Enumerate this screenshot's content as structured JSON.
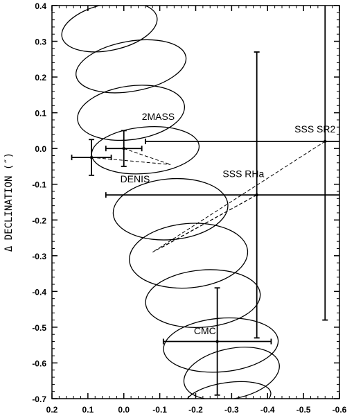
{
  "chart_data": {
    "type": "scatter",
    "title": "",
    "xlabel": "",
    "ylabel": "Δ DECLINATION (″)",
    "xlim": [
      0.2,
      -0.6
    ],
    "ylim": [
      -0.7,
      0.4
    ],
    "grid": false,
    "x_ticks": [
      0.2,
      0.1,
      0.0,
      -0.1,
      -0.2,
      -0.3,
      -0.4,
      -0.5,
      -0.6
    ],
    "x_tick_labels": [
      "0.2",
      "0.1",
      "0.0",
      "-0.1",
      "-0.2",
      "-0.3",
      "-0.4",
      "-0.5",
      "-0.6"
    ],
    "y_ticks": [
      0.4,
      0.3,
      0.2,
      0.1,
      0.0,
      -0.1,
      -0.2,
      -0.3,
      -0.4,
      -0.5,
      -0.6,
      -0.7
    ],
    "y_tick_labels": [
      "0.4",
      "0.3",
      "0.2",
      "0.1",
      "0.0",
      "-0.1",
      "-0.2",
      "-0.3",
      "-0.4",
      "-0.5",
      "-0.6",
      "-0.7"
    ],
    "points": [
      {
        "label": "2MASS",
        "x": 0.0,
        "y": 0.0,
        "xerr": 0.05,
        "yerr": 0.05
      },
      {
        "label": "DENIS",
        "x": 0.09,
        "y": -0.025,
        "xerr": 0.055,
        "yerr": 0.05
      },
      {
        "label": "SSS RHa",
        "x": -0.37,
        "y": -0.13,
        "xerr": 0.42,
        "yerr": 0.4
      },
      {
        "label": "SSS SR2",
        "x": -0.56,
        "y": 0.02,
        "xerr": 0.5,
        "yerr": 0.5
      },
      {
        "label": "CMC",
        "x": -0.26,
        "y": -0.54,
        "xerr": 0.15,
        "yerr": 0.15
      }
    ],
    "annotations": [
      {
        "text": "2MASS",
        "x": -0.05,
        "y": 0.08
      },
      {
        "text": "DENIS",
        "x": 0.01,
        "y": -0.095
      },
      {
        "text": "SSS RHa",
        "x": -0.275,
        "y": -0.08
      },
      {
        "text": "SSS SR2",
        "x": -0.475,
        "y": 0.045
      },
      {
        "text": "CMC",
        "x": -0.195,
        "y": -0.52
      }
    ],
    "ellipses": [
      {
        "cx": 0.04,
        "cy": 0.34,
        "rx": 0.135,
        "ry": 0.065,
        "angle": -12
      },
      {
        "cx": -0.02,
        "cy": 0.23,
        "rx": 0.155,
        "ry": 0.07,
        "angle": -10
      },
      {
        "cx": -0.02,
        "cy": 0.1,
        "rx": 0.15,
        "ry": 0.075,
        "angle": -8
      },
      {
        "cx": -0.06,
        "cy": -0.005,
        "rx": 0.15,
        "ry": 0.065,
        "angle": -5
      },
      {
        "cx": -0.13,
        "cy": -0.17,
        "rx": 0.16,
        "ry": 0.085,
        "angle": -5
      },
      {
        "cx": -0.18,
        "cy": -0.3,
        "rx": 0.165,
        "ry": 0.09,
        "angle": -5
      },
      {
        "cx": -0.22,
        "cy": -0.42,
        "rx": 0.16,
        "ry": 0.08,
        "angle": -5
      },
      {
        "cx": -0.27,
        "cy": -0.55,
        "rx": 0.16,
        "ry": 0.075,
        "angle": -5
      },
      {
        "cx": -0.3,
        "cy": -0.63,
        "rx": 0.135,
        "ry": 0.07,
        "angle": -12
      },
      {
        "cx": -0.29,
        "cy": -0.7,
        "rx": 0.12,
        "ry": 0.045,
        "angle": -8
      }
    ],
    "dashed_lines": [
      {
        "x1": 0.09,
        "y1": -0.025,
        "x2": -0.13,
        "y2": -0.045
      },
      {
        "x1": 0.0,
        "y1": 0.0,
        "x2": -0.13,
        "y2": -0.045
      },
      {
        "x1": -0.56,
        "y1": 0.02,
        "x2": -0.08,
        "y2": -0.29
      },
      {
        "x1": -0.37,
        "y1": -0.13,
        "x2": -0.08,
        "y2": -0.29
      },
      {
        "x1": -0.37,
        "y1": -0.13,
        "x2": -0.1,
        "y2": -0.28
      }
    ]
  }
}
